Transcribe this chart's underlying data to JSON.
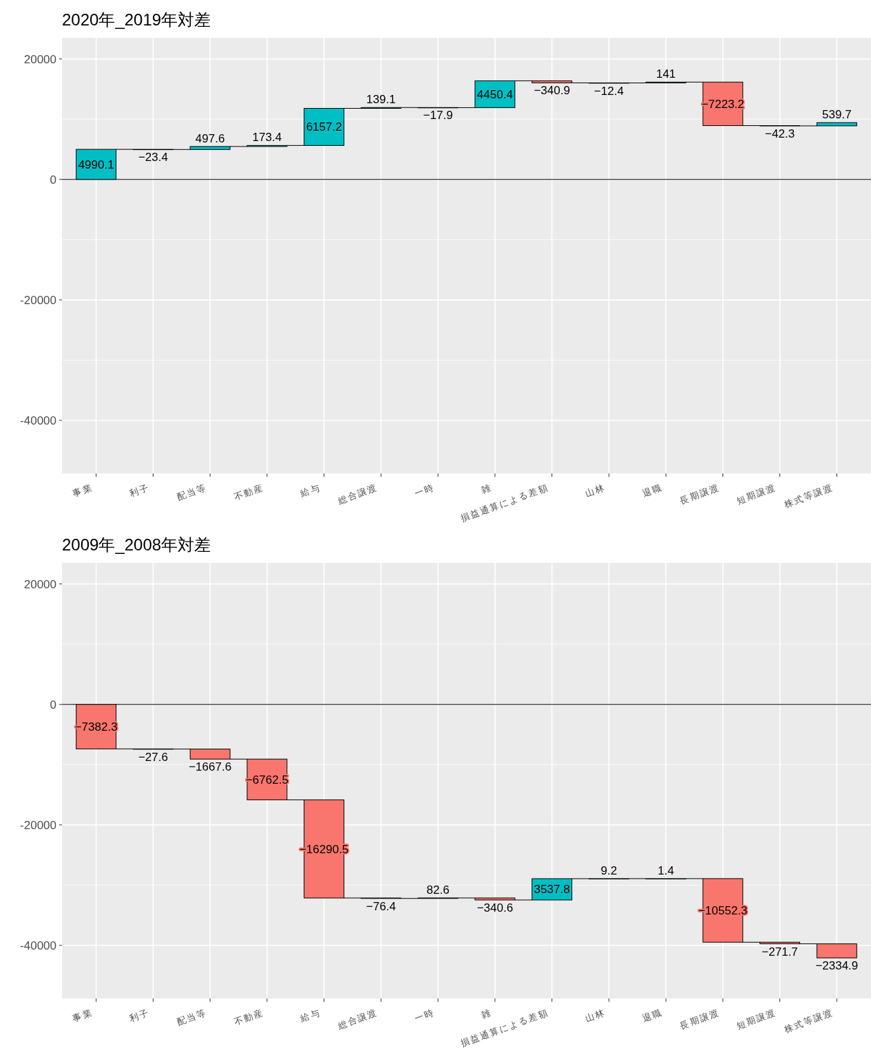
{
  "chart_data": [
    {
      "type": "bar",
      "title": "2020年_2019年対差",
      "categories": [
        "事業",
        "利子",
        "配当等",
        "不動産",
        "給与",
        "総合譲渡",
        "一時",
        "雑",
        "損益通算による差額",
        "山林",
        "退職",
        "長期譲渡",
        "短期譲渡",
        "株式等譲渡"
      ],
      "values": [
        4990.1,
        -23.4,
        497.6,
        173.4,
        6157.2,
        139.1,
        -17.9,
        4450.4,
        -340.9,
        -12.4,
        141,
        -7223.2,
        -42.3,
        539.7
      ],
      "base": [
        0,
        4990.1,
        4966.7,
        5464.3,
        5637.7,
        11794.9,
        11934.0,
        11916.1,
        16366.5,
        16025.6,
        16013.2,
        16154.2,
        8931.0,
        8888.7
      ],
      "colors": [
        "#00bfc4",
        "#f8766d",
        "#00bfc4",
        "#00bfc4",
        "#00bfc4",
        "#00bfc4",
        "#f8766d",
        "#00bfc4",
        "#f8766d",
        "#f8766d",
        "#00bfc4",
        "#f8766d",
        "#f8766d",
        "#00bfc4"
      ],
      "value_labels": [
        "4990.1",
        "−23.4",
        "497.6",
        "173.4",
        "6157.2",
        "139.1",
        "−17.9",
        "4450.4",
        "−340.9",
        "−12.4",
        "141",
        "−7223.2",
        "−42.3",
        "539.7"
      ],
      "ylim": [
        -48800,
        23500
      ],
      "yticks": [
        -40000,
        -20000,
        0,
        20000
      ],
      "grid": true,
      "ref_lines": [
        {
          "axis": "y",
          "value": 0,
          "color": "#000000"
        }
      ]
    },
    {
      "type": "bar",
      "title": "2009年_2008年対差",
      "categories": [
        "事業",
        "利子",
        "配当等",
        "不動産",
        "給与",
        "総合譲渡",
        "一時",
        "雑",
        "損益通算による差額",
        "山林",
        "退職",
        "長期譲渡",
        "短期譲渡",
        "株式等譲渡"
      ],
      "values": [
        -7382.3,
        -27.6,
        -1667.6,
        -6762.5,
        -16290.5,
        -76.4,
        82.6,
        -340.6,
        3537.8,
        9.2,
        1.4,
        -10552.3,
        -271.7,
        -2334.9
      ],
      "base": [
        0,
        -7382.3,
        -7409.9,
        -9077.5,
        -15840.0,
        -32130.5,
        -32206.9,
        -32124.3,
        -32464.9,
        -28927.1,
        -28917.9,
        -28916.5,
        -39468.8,
        -39740.5
      ],
      "colors": [
        "#f8766d",
        "#f8766d",
        "#f8766d",
        "#f8766d",
        "#f8766d",
        "#f8766d",
        "#00bfc4",
        "#f8766d",
        "#00bfc4",
        "#00bfc4",
        "#00bfc4",
        "#f8766d",
        "#f8766d",
        "#f8766d"
      ],
      "value_labels": [
        "−7382.3",
        "−27.6",
        "−1667.6",
        "−6762.5",
        "−16290.5",
        "−76.4",
        "82.6",
        "−340.6",
        "3537.8",
        "9.2",
        "1.4",
        "−10552.3",
        "−271.7",
        "−2334.9"
      ],
      "ylim": [
        -48800,
        23500
      ],
      "yticks": [
        -40000,
        -20000,
        0,
        20000
      ],
      "grid": true,
      "ref_lines": [
        {
          "axis": "y",
          "value": 0,
          "color": "#000000"
        }
      ]
    }
  ]
}
